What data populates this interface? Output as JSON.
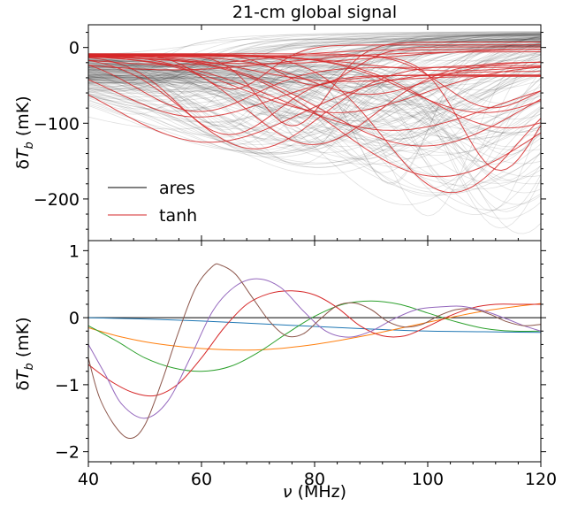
{
  "chart_data": [
    {
      "type": "line",
      "title": "21-cm global signal",
      "xlabel": "",
      "ylabel": "δT_b (mK)",
      "xlim": [
        40,
        120
      ],
      "ylim": [
        -255,
        30
      ],
      "yticks": [
        0,
        -100,
        -200
      ],
      "ytick_labels": [
        "0",
        "−100",
        "−200"
      ],
      "grid": false,
      "legend": {
        "position": "lower-left",
        "entries": [
          {
            "label": "ares",
            "color": "#000000"
          },
          {
            "label": "tanh",
            "color": "#d62728"
          }
        ]
      },
      "series_families": [
        {
          "name": "ares",
          "color": "#000000",
          "opacity": 0.12,
          "count": 180,
          "description_values": {
            "start_at_40MHz_range": [
              -48,
              -8
            ],
            "trough_depth_range": [
              -260,
              0
            ],
            "trough_frequency_range": [
              45,
              120
            ],
            "high_frequency_plateau": [
              0,
              22
            ]
          }
        },
        {
          "name": "tanh",
          "color": "#d62728",
          "opacity": 0.85,
          "count": 24,
          "description_values": {
            "start_at_40MHz_range": [
              -12,
              -8
            ],
            "trough_depth_range": [
              -175,
              -5
            ],
            "trough_frequency_range": [
              55,
              115
            ],
            "high_frequency_plateau": [
              -40,
              10
            ]
          }
        }
      ]
    },
    {
      "type": "line",
      "title": "",
      "xlabel": "ν (MHz)",
      "ylabel": "δT_b (mK)",
      "xlim": [
        40,
        120
      ],
      "ylim": [
        -2.15,
        1.15
      ],
      "xticks": [
        40,
        60,
        80,
        100,
        120
      ],
      "xtick_labels": [
        "40",
        "60",
        "80",
        "100",
        "120"
      ],
      "yticks": [
        1,
        0,
        -1,
        -2
      ],
      "ytick_labels": [
        "1",
        "0",
        "−1",
        "−2"
      ],
      "grid": false,
      "reference_line": 0,
      "series": [
        {
          "color": "#1f77b4",
          "x": [
            40,
            50,
            60,
            70,
            80,
            90,
            100,
            110,
            120
          ],
          "values": [
            0.0,
            -0.02,
            -0.05,
            -0.09,
            -0.13,
            -0.17,
            -0.2,
            -0.21,
            -0.22
          ]
        },
        {
          "color": "#ff7f0e",
          "x": [
            40,
            45,
            50,
            55,
            60,
            65,
            70,
            75,
            80,
            85,
            90,
            95,
            100,
            105,
            110,
            115,
            120
          ],
          "values": [
            -0.15,
            -0.27,
            -0.36,
            -0.42,
            -0.46,
            -0.48,
            -0.48,
            -0.45,
            -0.4,
            -0.33,
            -0.25,
            -0.16,
            -0.07,
            0.02,
            0.1,
            0.16,
            0.21
          ]
        },
        {
          "color": "#2ca02c",
          "x": [
            40,
            45,
            50,
            55,
            60,
            65,
            70,
            75,
            80,
            85,
            90,
            95,
            100,
            105,
            110,
            115,
            120
          ],
          "values": [
            -0.12,
            -0.35,
            -0.6,
            -0.75,
            -0.8,
            -0.73,
            -0.52,
            -0.24,
            0.02,
            0.2,
            0.25,
            0.2,
            0.07,
            -0.06,
            -0.16,
            -0.2,
            -0.2
          ]
        },
        {
          "color": "#d62728",
          "x": [
            40,
            44,
            48,
            52,
            56,
            60,
            64,
            68,
            72,
            76,
            80,
            84,
            88,
            92,
            96,
            100,
            104,
            108,
            112,
            116,
            120
          ],
          "values": [
            -0.7,
            -0.95,
            -1.12,
            -1.16,
            -0.98,
            -0.6,
            -0.15,
            0.2,
            0.36,
            0.4,
            0.34,
            0.15,
            -0.12,
            -0.27,
            -0.27,
            -0.13,
            0.03,
            0.15,
            0.2,
            0.2,
            0.2
          ]
        },
        {
          "color": "#9467bd",
          "x": [
            40,
            43,
            46,
            50,
            54,
            58,
            62,
            66,
            70,
            74,
            78,
            82,
            86,
            90,
            94,
            98,
            102,
            106,
            110,
            114,
            117,
            120
          ],
          "values": [
            -0.4,
            -0.85,
            -1.3,
            -1.5,
            -1.25,
            -0.6,
            0.1,
            0.47,
            0.58,
            0.45,
            0.1,
            -0.2,
            -0.29,
            -0.2,
            -0.02,
            0.12,
            0.16,
            0.17,
            0.1,
            -0.02,
            -0.12,
            -0.2
          ]
        },
        {
          "color": "#8c564b",
          "x": [
            40,
            42,
            45,
            47.5,
            50,
            53,
            56,
            59,
            62,
            63.5,
            66,
            69,
            72,
            75,
            78,
            81,
            84,
            87,
            90,
            93,
            96,
            99,
            102,
            105,
            108,
            111,
            114,
            117,
            120
          ],
          "values": [
            -0.6,
            -1.2,
            -1.65,
            -1.8,
            -1.6,
            -0.95,
            -0.2,
            0.45,
            0.77,
            0.78,
            0.65,
            0.3,
            -0.05,
            -0.27,
            -0.24,
            -0.02,
            0.18,
            0.22,
            0.12,
            -0.06,
            -0.14,
            -0.1,
            0.03,
            0.12,
            0.13,
            0.05,
            -0.06,
            -0.12,
            -0.1
          ]
        }
      ]
    }
  ]
}
